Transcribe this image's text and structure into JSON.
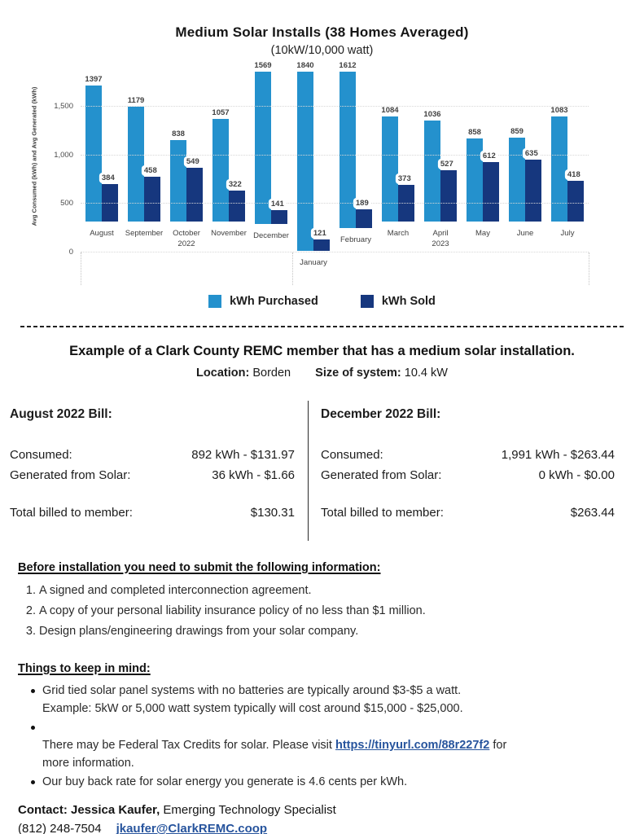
{
  "chart": {
    "title": "Medium Solar Installs (38 Homes Averaged)",
    "subtitle": "(10kW/10,000 watt)",
    "y_axis_title": "Avg Consumed (kWh) and Avg Generated (kWh)"
  },
  "chart_data": {
    "type": "bar",
    "categories": [
      "August",
      "September",
      "October",
      "November",
      "December",
      "January",
      "February",
      "March",
      "April",
      "May",
      "June",
      "July"
    ],
    "year_labels": [
      "",
      "",
      "2022",
      "",
      "",
      "",
      "",
      "",
      "2023",
      "",
      "",
      ""
    ],
    "series": [
      {
        "name": "kWh Purchased",
        "color": "#2491cd",
        "values": [
          1397,
          1179,
          838,
          1057,
          1569,
          1840,
          1612,
          1084,
          1036,
          858,
          859,
          1083
        ]
      },
      {
        "name": "kWh Sold",
        "color": "#16377e",
        "values": [
          384,
          458,
          549,
          322,
          141,
          121,
          189,
          373,
          527,
          612,
          635,
          418
        ]
      }
    ],
    "title": "Medium Solar Installs (38 Homes Averaged)",
    "subtitle": "(10kW/10,000 watt)",
    "xlabel": "",
    "ylabel": "Avg Consumed (kWh) and Avg Generated (kWh)",
    "ylim": [
      0,
      1900
    ],
    "y_ticks": [
      {
        "value": 0,
        "label": "0"
      },
      {
        "value": 500,
        "label": "500"
      },
      {
        "value": 1000,
        "label": "1,000"
      },
      {
        "value": 1500,
        "label": "1,500"
      }
    ],
    "grid": "horizontal dotted",
    "legend_position": "bottom"
  },
  "example": {
    "heading": "Example of a Clark County REMC member that has a medium solar installation.",
    "location_label": "Location:",
    "location_value": "Borden",
    "size_label": "Size of system:",
    "size_value": "10.4 kW"
  },
  "bills": {
    "left": {
      "title": "August 2022 Bill:",
      "consumed_label": "Consumed:",
      "consumed_value": "892 kWh - $131.97",
      "generated_label": "Generated from Solar:",
      "generated_value": "36 kWh - $1.66",
      "total_label": "Total billed to member:",
      "total_value": "$130.31"
    },
    "right": {
      "title": "December 2022 Bill:",
      "consumed_label": "Consumed:",
      "consumed_value": "1,991 kWh - $263.44",
      "generated_label": "Generated from Solar:",
      "generated_value": "0 kWh -  $0.00",
      "total_label": "Total billed to member:",
      "total_value": "$263.44"
    }
  },
  "before_installation": {
    "heading": "Before installation you need to submit the following information:",
    "items": [
      "A signed and completed interconnection agreement.",
      "A copy of your personal liability insurance policy of no less than $1 million.",
      "Design plans/engineering drawings from your solar company."
    ]
  },
  "things_to_keep_in_mind": {
    "heading": "Things to keep in mind:",
    "bullet_1": "Grid tied solar panel systems with no batteries are typically around $3-$5 a watt.\nExample: 5kW or 5,000 watt system typically will cost around $15,000 - $25,000.",
    "bullet_2_prefix": "There may be Federal Tax Credits for solar. Please visit ",
    "bullet_2_link": "https://tinyurl.com/88r227f2",
    "bullet_2_suffix": " for\nmore information.",
    "bullet_3": "Our buy back rate for solar energy you generate is 4.6 cents per kWh."
  },
  "contact": {
    "label_bold": "Contact: Jessica Kaufer,",
    "role": " Emerging Technology Specialist",
    "phone": "(812) 248-7504",
    "email": "jkaufer@ClarkREMC.coop"
  },
  "colors": {
    "purchased": "#2491cd",
    "sold": "#16377e",
    "link": "#27549d",
    "gridline": "#d7d7d7"
  }
}
